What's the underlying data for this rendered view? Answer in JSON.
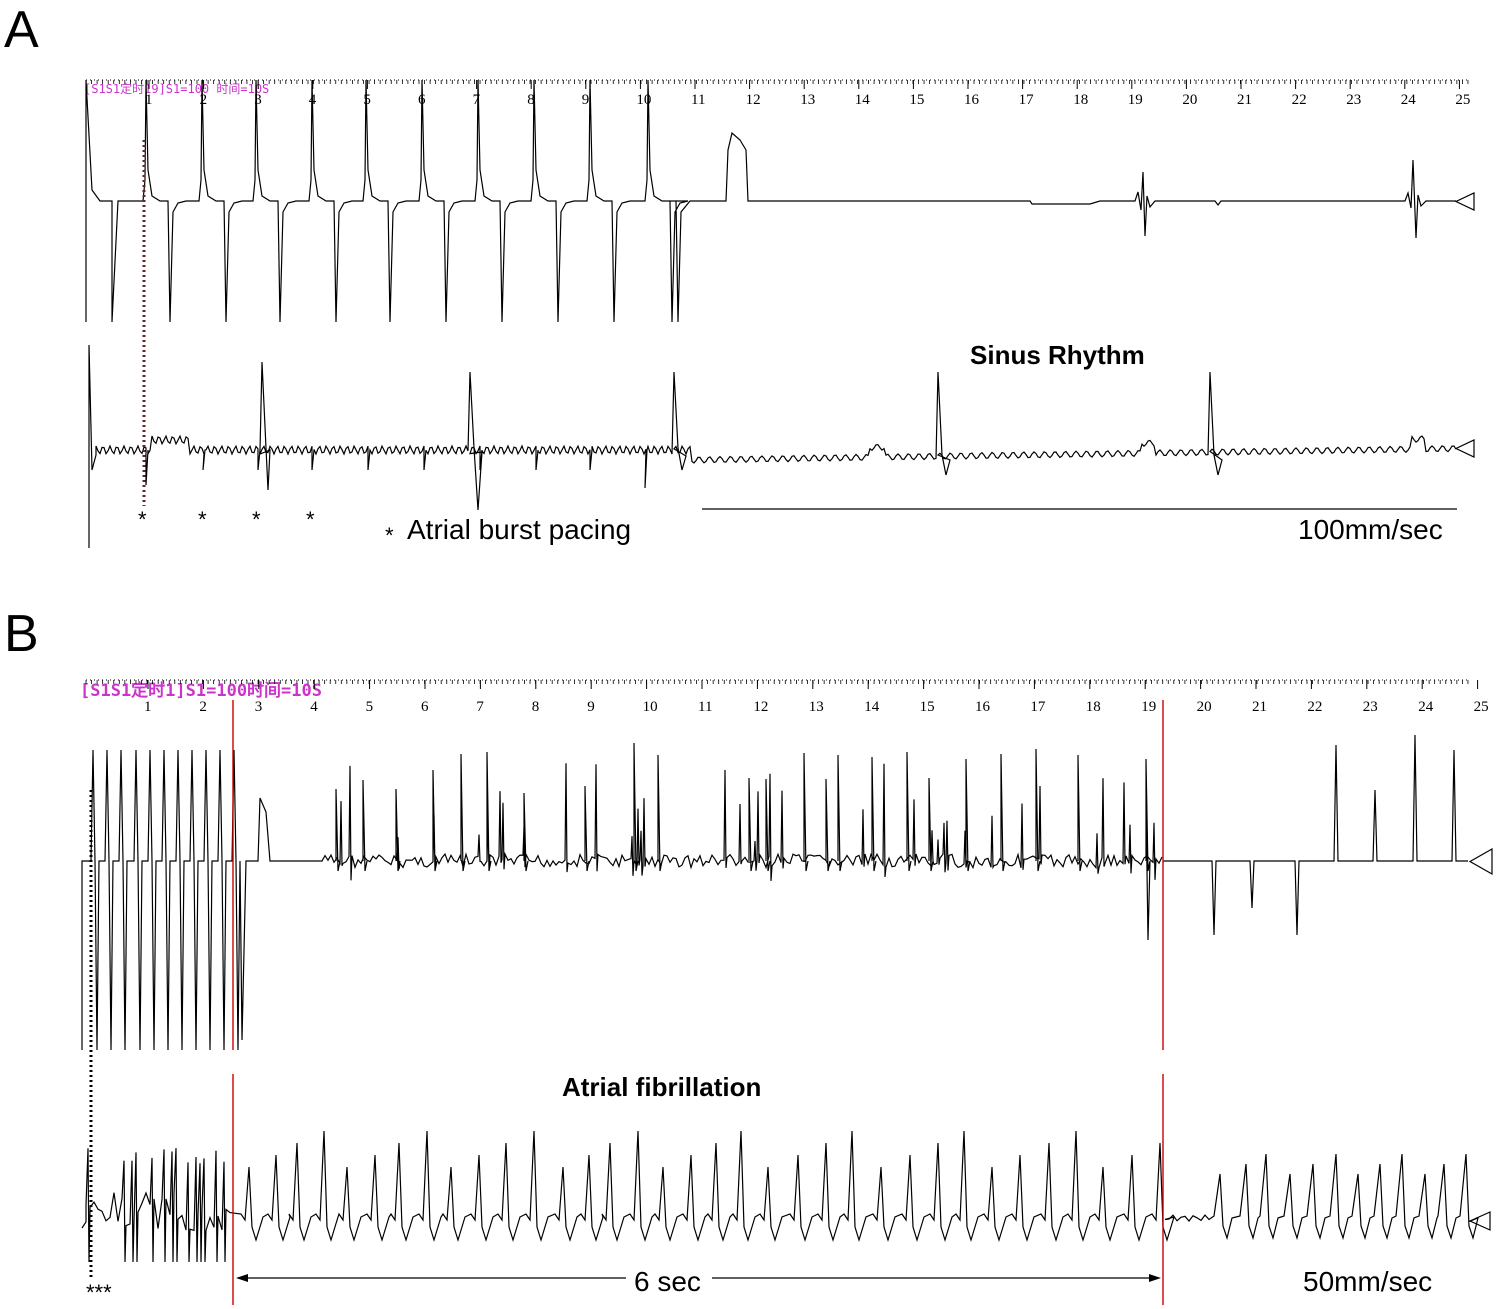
{
  "panels": {
    "a": {
      "letter": "A",
      "header": "[S1S1定时19]S1=100 时间=10S",
      "ticks": [
        "1",
        "2",
        "3",
        "4",
        "5",
        "6",
        "7",
        "8",
        "9",
        "10",
        "11",
        "12",
        "13",
        "14",
        "15",
        "16",
        "17",
        "18",
        "19",
        "20",
        "21",
        "22",
        "23",
        "24",
        "25"
      ],
      "rhythm_label": "Sinus Rhythm",
      "pacing_marker": "*",
      "pacing_legend": "Atrial burst pacing",
      "speed": "100mm/sec"
    },
    "b": {
      "letter": "B",
      "header": "[S1S1定时1]S1=100时间=10S",
      "ticks": [
        "1",
        "2",
        "3",
        "4",
        "5",
        "6",
        "7",
        "8",
        "9",
        "10",
        "11",
        "12",
        "13",
        "14",
        "15",
        "16",
        "17",
        "18",
        "19",
        "20",
        "21",
        "22",
        "23",
        "24",
        "25"
      ],
      "rhythm_label": "Atrial fibrillation",
      "pacing_marker": "***",
      "duration": "6 sec",
      "speed": "50mm/sec"
    }
  },
  "colors": {
    "trace": "#000000",
    "header": "#cc33cc",
    "marker_line": "#cc0000",
    "pacing_dots": "#5a2a2a"
  }
}
